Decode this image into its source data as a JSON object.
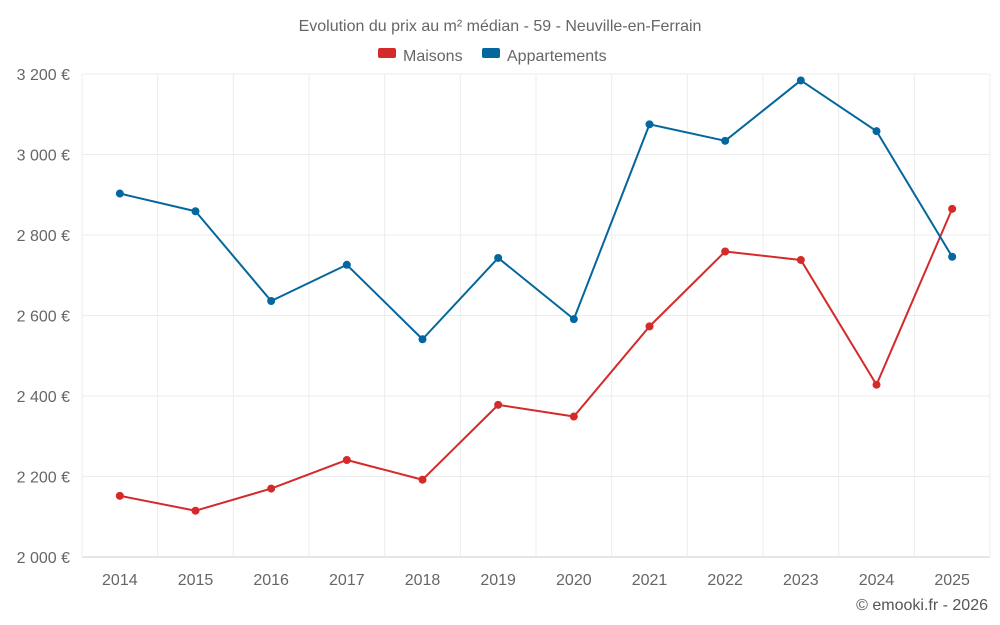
{
  "chart_data": {
    "type": "line",
    "title": "Evolution du prix au m² médian - 59 - Neuville-en-Ferrain",
    "categories": [
      "2014",
      "2015",
      "2016",
      "2017",
      "2018",
      "2019",
      "2020",
      "2021",
      "2022",
      "2023",
      "2024",
      "2025"
    ],
    "series": [
      {
        "name": "Maisons",
        "color": "#d42a2a",
        "values": [
          2152,
          2115,
          2170,
          2241,
          2192,
          2378,
          2349,
          2573,
          2759,
          2738,
          2428,
          2865
        ]
      },
      {
        "name": "Appartements",
        "color": "#04669e",
        "values": [
          2903,
          2859,
          2636,
          2726,
          2541,
          2743,
          2591,
          3075,
          3034,
          3184,
          3058,
          2746
        ]
      }
    ],
    "ylim": [
      2000,
      3200
    ],
    "yticks": [
      2000,
      2200,
      2400,
      2600,
      2800,
      3000,
      3200
    ],
    "ytick_labels": [
      "2 000 €",
      "2 200 €",
      "2 400 €",
      "2 600 €",
      "2 800 €",
      "3 000 €",
      "3 200 €"
    ],
    "xlabel": "",
    "ylabel": "",
    "legend_position": "top-center",
    "grid": true
  },
  "credit": "© emooki.fr - 2026"
}
